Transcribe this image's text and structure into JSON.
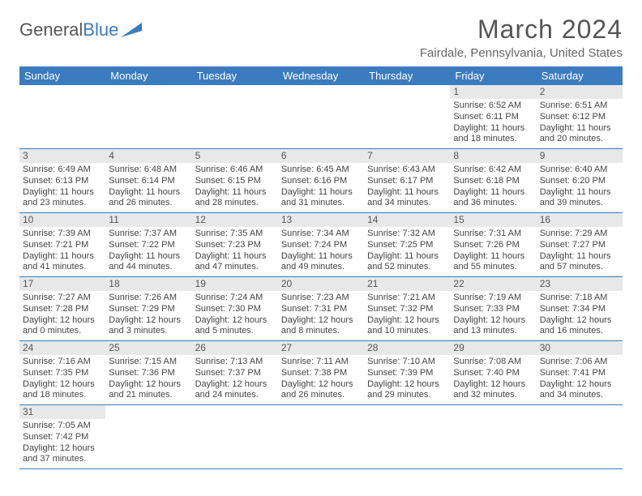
{
  "brand": {
    "word1": "General",
    "word2": "Blue"
  },
  "title": "March 2024",
  "location": "Fairdale, Pennsylvania, United States",
  "colors": {
    "header_bg": "#3b7bbf",
    "header_text": "#ffffff",
    "daynum_bg": "#e8e8e8",
    "border": "#3b7bbf",
    "body_text": "#444444"
  },
  "daysOfWeek": [
    "Sunday",
    "Monday",
    "Tuesday",
    "Wednesday",
    "Thursday",
    "Friday",
    "Saturday"
  ],
  "weeks": [
    [
      null,
      null,
      null,
      null,
      null,
      {
        "n": "1",
        "sr": "6:52 AM",
        "ss": "6:11 PM",
        "dl": "11 hours and 18 minutes."
      },
      {
        "n": "2",
        "sr": "6:51 AM",
        "ss": "6:12 PM",
        "dl": "11 hours and 20 minutes."
      }
    ],
    [
      {
        "n": "3",
        "sr": "6:49 AM",
        "ss": "6:13 PM",
        "dl": "11 hours and 23 minutes."
      },
      {
        "n": "4",
        "sr": "6:48 AM",
        "ss": "6:14 PM",
        "dl": "11 hours and 26 minutes."
      },
      {
        "n": "5",
        "sr": "6:46 AM",
        "ss": "6:15 PM",
        "dl": "11 hours and 28 minutes."
      },
      {
        "n": "6",
        "sr": "6:45 AM",
        "ss": "6:16 PM",
        "dl": "11 hours and 31 minutes."
      },
      {
        "n": "7",
        "sr": "6:43 AM",
        "ss": "6:17 PM",
        "dl": "11 hours and 34 minutes."
      },
      {
        "n": "8",
        "sr": "6:42 AM",
        "ss": "6:18 PM",
        "dl": "11 hours and 36 minutes."
      },
      {
        "n": "9",
        "sr": "6:40 AM",
        "ss": "6:20 PM",
        "dl": "11 hours and 39 minutes."
      }
    ],
    [
      {
        "n": "10",
        "sr": "7:39 AM",
        "ss": "7:21 PM",
        "dl": "11 hours and 41 minutes."
      },
      {
        "n": "11",
        "sr": "7:37 AM",
        "ss": "7:22 PM",
        "dl": "11 hours and 44 minutes."
      },
      {
        "n": "12",
        "sr": "7:35 AM",
        "ss": "7:23 PM",
        "dl": "11 hours and 47 minutes."
      },
      {
        "n": "13",
        "sr": "7:34 AM",
        "ss": "7:24 PM",
        "dl": "11 hours and 49 minutes."
      },
      {
        "n": "14",
        "sr": "7:32 AM",
        "ss": "7:25 PM",
        "dl": "11 hours and 52 minutes."
      },
      {
        "n": "15",
        "sr": "7:31 AM",
        "ss": "7:26 PM",
        "dl": "11 hours and 55 minutes."
      },
      {
        "n": "16",
        "sr": "7:29 AM",
        "ss": "7:27 PM",
        "dl": "11 hours and 57 minutes."
      }
    ],
    [
      {
        "n": "17",
        "sr": "7:27 AM",
        "ss": "7:28 PM",
        "dl": "12 hours and 0 minutes."
      },
      {
        "n": "18",
        "sr": "7:26 AM",
        "ss": "7:29 PM",
        "dl": "12 hours and 3 minutes."
      },
      {
        "n": "19",
        "sr": "7:24 AM",
        "ss": "7:30 PM",
        "dl": "12 hours and 5 minutes."
      },
      {
        "n": "20",
        "sr": "7:23 AM",
        "ss": "7:31 PM",
        "dl": "12 hours and 8 minutes."
      },
      {
        "n": "21",
        "sr": "7:21 AM",
        "ss": "7:32 PM",
        "dl": "12 hours and 10 minutes."
      },
      {
        "n": "22",
        "sr": "7:19 AM",
        "ss": "7:33 PM",
        "dl": "12 hours and 13 minutes."
      },
      {
        "n": "23",
        "sr": "7:18 AM",
        "ss": "7:34 PM",
        "dl": "12 hours and 16 minutes."
      }
    ],
    [
      {
        "n": "24",
        "sr": "7:16 AM",
        "ss": "7:35 PM",
        "dl": "12 hours and 18 minutes."
      },
      {
        "n": "25",
        "sr": "7:15 AM",
        "ss": "7:36 PM",
        "dl": "12 hours and 21 minutes."
      },
      {
        "n": "26",
        "sr": "7:13 AM",
        "ss": "7:37 PM",
        "dl": "12 hours and 24 minutes."
      },
      {
        "n": "27",
        "sr": "7:11 AM",
        "ss": "7:38 PM",
        "dl": "12 hours and 26 minutes."
      },
      {
        "n": "28",
        "sr": "7:10 AM",
        "ss": "7:39 PM",
        "dl": "12 hours and 29 minutes."
      },
      {
        "n": "29",
        "sr": "7:08 AM",
        "ss": "7:40 PM",
        "dl": "12 hours and 32 minutes."
      },
      {
        "n": "30",
        "sr": "7:06 AM",
        "ss": "7:41 PM",
        "dl": "12 hours and 34 minutes."
      }
    ],
    [
      {
        "n": "31",
        "sr": "7:05 AM",
        "ss": "7:42 PM",
        "dl": "12 hours and 37 minutes."
      },
      null,
      null,
      null,
      null,
      null,
      null
    ]
  ],
  "labels": {
    "sunrise": "Sunrise:",
    "sunset": "Sunset:",
    "daylight": "Daylight:"
  }
}
